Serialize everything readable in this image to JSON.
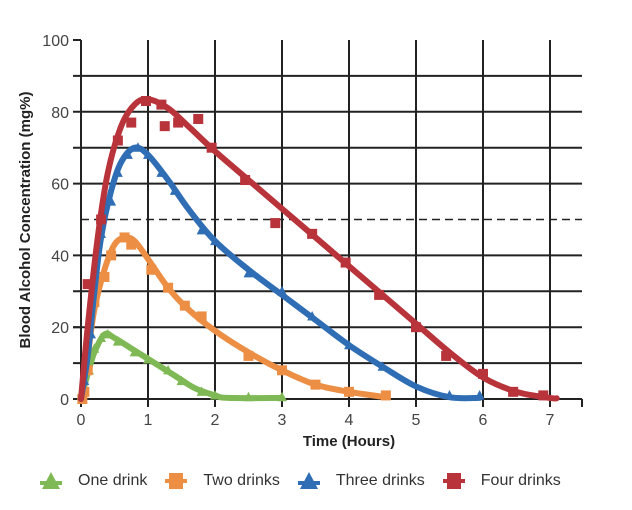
{
  "chart_data": {
    "type": "scatter",
    "title": "",
    "xlabel": "Time (Hours)",
    "ylabel": "Blood Alcohol Concentration (mg%)",
    "xlim": [
      0,
      7.5
    ],
    "ylim": [
      0,
      100
    ],
    "x_ticks": [
      0,
      1,
      2,
      3,
      4,
      5,
      6,
      7
    ],
    "y_ticks": [
      0,
      20,
      40,
      60,
      80,
      100
    ],
    "grid": true,
    "reference_line": {
      "y": 50,
      "style": "dashed"
    },
    "legend_position": "bottom",
    "series": [
      {
        "name": "One drink",
        "color": "#7fb955",
        "marker": "triangle",
        "points": [
          [
            0.05,
            3
          ],
          [
            0.12,
            8
          ],
          [
            0.2,
            14
          ],
          [
            0.3,
            17
          ],
          [
            0.4,
            18
          ],
          [
            0.55,
            16
          ],
          [
            0.8,
            13
          ],
          [
            1.0,
            11
          ],
          [
            1.3,
            8
          ],
          [
            1.5,
            5
          ],
          [
            1.8,
            2
          ],
          [
            2.0,
            1
          ],
          [
            2.5,
            0.5
          ],
          [
            3.0,
            0.5
          ]
        ],
        "fit": [
          [
            0,
            0
          ],
          [
            0.1,
            7
          ],
          [
            0.2,
            13
          ],
          [
            0.35,
            18
          ],
          [
            0.5,
            17
          ],
          [
            0.8,
            13.5
          ],
          [
            1.1,
            10
          ],
          [
            1.4,
            6.5
          ],
          [
            1.7,
            3
          ],
          [
            2.0,
            1
          ],
          [
            2.2,
            0.3
          ],
          [
            3.0,
            0.3
          ]
        ]
      },
      {
        "name": "Two drinks",
        "color": "#ec8e44",
        "marker": "square",
        "points": [
          [
            0.02,
            0
          ],
          [
            0.05,
            2
          ],
          [
            0.1,
            8
          ],
          [
            0.2,
            27
          ],
          [
            0.25,
            33
          ],
          [
            0.35,
            34
          ],
          [
            0.45,
            40
          ],
          [
            0.65,
            45
          ],
          [
            0.75,
            43
          ],
          [
            1.05,
            36
          ],
          [
            1.3,
            31
          ],
          [
            1.55,
            26
          ],
          [
            1.8,
            23
          ],
          [
            2.5,
            12
          ],
          [
            3.0,
            8
          ],
          [
            3.5,
            4
          ],
          [
            4.0,
            2
          ],
          [
            4.55,
            1
          ]
        ],
        "fit": [
          [
            0,
            0
          ],
          [
            0.1,
            12
          ],
          [
            0.2,
            25
          ],
          [
            0.35,
            36
          ],
          [
            0.5,
            43
          ],
          [
            0.65,
            45
          ],
          [
            0.8,
            44
          ],
          [
            1.0,
            39
          ],
          [
            1.3,
            31
          ],
          [
            1.6,
            25
          ],
          [
            2.0,
            19
          ],
          [
            2.5,
            13
          ],
          [
            3.0,
            8
          ],
          [
            3.5,
            4
          ],
          [
            4.0,
            2
          ],
          [
            4.55,
            0.5
          ]
        ]
      },
      {
        "name": "Three drinks",
        "color": "#2f6db5",
        "marker": "triangle",
        "points": [
          [
            0.05,
            5
          ],
          [
            0.15,
            18
          ],
          [
            0.3,
            46
          ],
          [
            0.45,
            55
          ],
          [
            0.55,
            63
          ],
          [
            0.7,
            68
          ],
          [
            0.85,
            70
          ],
          [
            1.0,
            68
          ],
          [
            1.2,
            63
          ],
          [
            1.4,
            58
          ],
          [
            1.8,
            47
          ],
          [
            2.0,
            44
          ],
          [
            2.5,
            35
          ],
          [
            3.0,
            30
          ],
          [
            3.45,
            23
          ],
          [
            4.0,
            15
          ],
          [
            4.5,
            9
          ],
          [
            5.5,
            1
          ],
          [
            5.95,
            1
          ]
        ],
        "fit": [
          [
            0,
            0
          ],
          [
            0.1,
            12
          ],
          [
            0.2,
            30
          ],
          [
            0.3,
            45
          ],
          [
            0.45,
            58
          ],
          [
            0.6,
            66
          ],
          [
            0.8,
            70
          ],
          [
            1.0,
            68
          ],
          [
            1.3,
            61
          ],
          [
            1.6,
            53
          ],
          [
            2.0,
            44
          ],
          [
            2.5,
            36
          ],
          [
            3.0,
            29
          ],
          [
            3.5,
            22
          ],
          [
            4.0,
            15
          ],
          [
            4.5,
            9
          ],
          [
            5.0,
            3.5
          ],
          [
            5.5,
            0.5
          ],
          [
            5.95,
            0.3
          ]
        ]
      },
      {
        "name": "Four drinks",
        "color": "#b8333a",
        "marker": "square",
        "points": [
          [
            0.1,
            32
          ],
          [
            0.3,
            50
          ],
          [
            0.55,
            72
          ],
          [
            0.75,
            77
          ],
          [
            0.97,
            83
          ],
          [
            1.2,
            82
          ],
          [
            1.25,
            76
          ],
          [
            1.45,
            77
          ],
          [
            1.75,
            78
          ],
          [
            1.95,
            70
          ],
          [
            2.45,
            61
          ],
          [
            2.9,
            49
          ],
          [
            3.45,
            46
          ],
          [
            3.95,
            38
          ],
          [
            4.45,
            29
          ],
          [
            5.0,
            20
          ],
          [
            5.45,
            12
          ],
          [
            6.0,
            7
          ],
          [
            6.45,
            2
          ],
          [
            6.9,
            1
          ]
        ],
        "fit": [
          [
            0,
            0
          ],
          [
            0.1,
            20
          ],
          [
            0.25,
            45
          ],
          [
            0.4,
            63
          ],
          [
            0.6,
            76
          ],
          [
            0.8,
            82
          ],
          [
            1.0,
            83.5
          ],
          [
            1.3,
            81
          ],
          [
            1.6,
            76
          ],
          [
            2.0,
            69
          ],
          [
            2.5,
            61
          ],
          [
            3.0,
            53
          ],
          [
            3.5,
            45
          ],
          [
            4.0,
            37
          ],
          [
            4.5,
            29
          ],
          [
            5.0,
            21
          ],
          [
            5.5,
            13
          ],
          [
            6.0,
            6
          ],
          [
            6.5,
            2
          ],
          [
            7.0,
            0.3
          ],
          [
            7.1,
            0.2
          ]
        ]
      }
    ]
  },
  "legend": [
    {
      "label": "One drink",
      "color": "#7fb955",
      "marker": "triangle-icon"
    },
    {
      "label": "Two drinks",
      "color": "#ec8e44",
      "marker": "square-icon"
    },
    {
      "label": "Three drinks",
      "color": "#2f6db5",
      "marker": "triangle-icon"
    },
    {
      "label": "Four drinks",
      "color": "#b8333a",
      "marker": "square-icon"
    }
  ]
}
